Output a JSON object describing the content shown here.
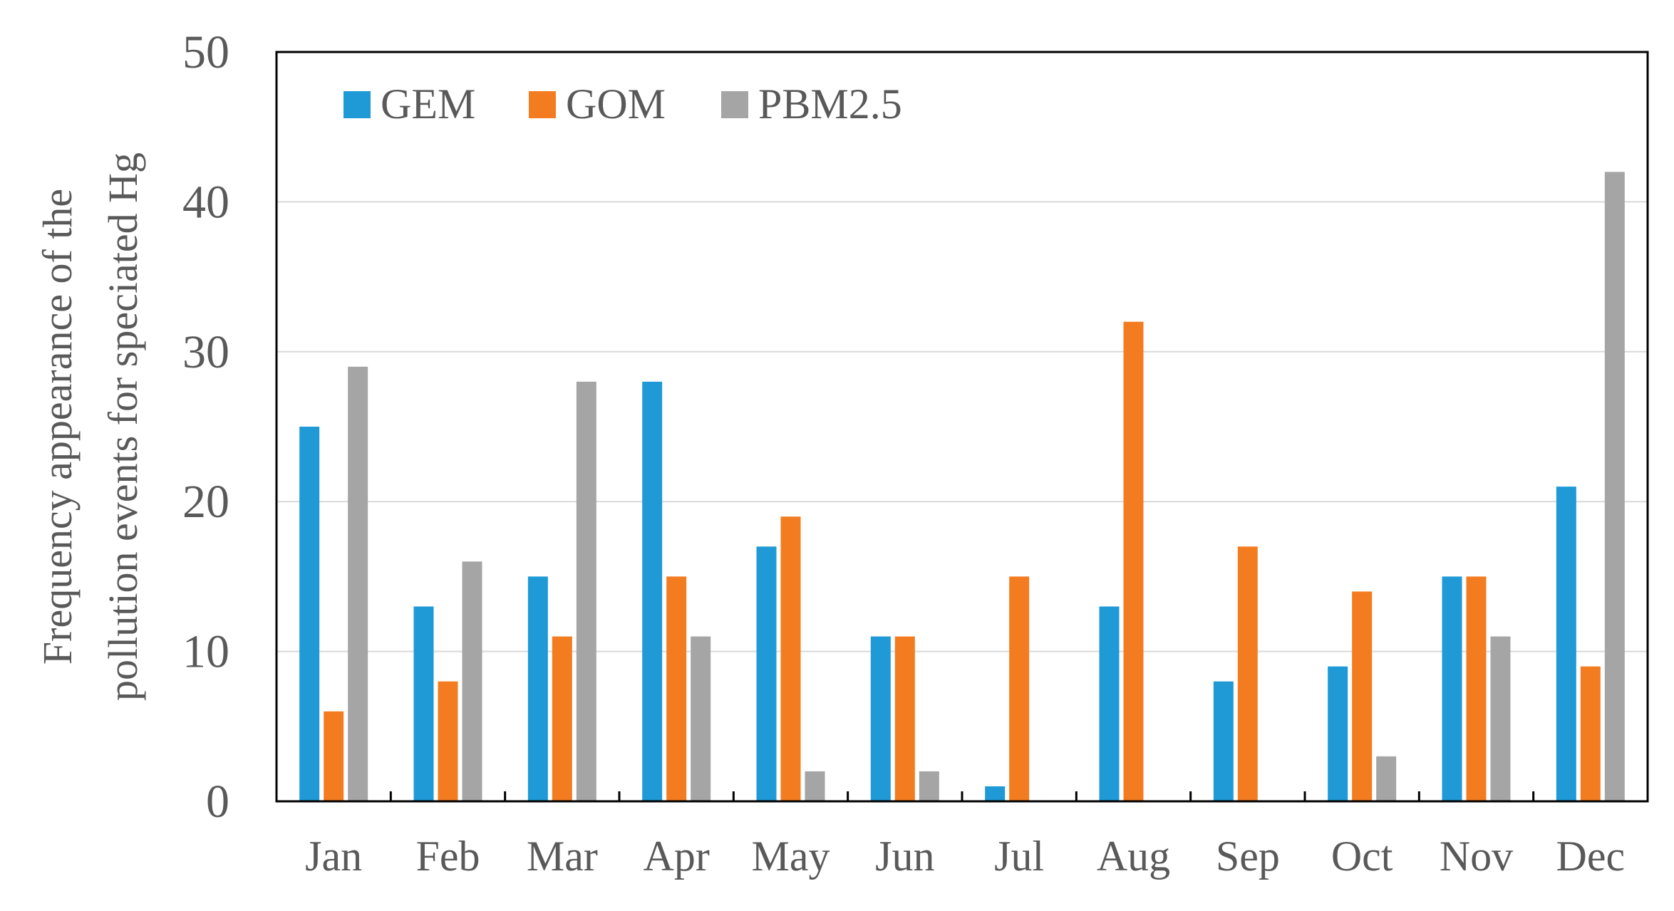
{
  "chart_data": {
    "type": "bar",
    "ylabel_lines": [
      "Frequency appearance of the",
      "pollution events for speciated Hg"
    ],
    "xlabel": "",
    "title": "",
    "categories": [
      "Jan",
      "Feb",
      "Mar",
      "Apr",
      "May",
      "Jun",
      "Jul",
      "Aug",
      "Sep",
      "Oct",
      "Nov",
      "Dec"
    ],
    "series": [
      {
        "name": "GEM",
        "color": "#1F9AD6",
        "values": [
          25,
          13,
          15,
          28,
          17,
          11,
          1,
          13,
          8,
          9,
          15,
          21
        ]
      },
      {
        "name": "GOM",
        "color": "#F47C20",
        "values": [
          6,
          8,
          11,
          15,
          19,
          11,
          15,
          32,
          17,
          14,
          15,
          9
        ]
      },
      {
        "name": "PBM2.5",
        "color": "#A5A5A5",
        "values": [
          29,
          16,
          28,
          11,
          2,
          2,
          0,
          0,
          0,
          3,
          11,
          42
        ]
      }
    ],
    "ylim": [
      0,
      50
    ],
    "yticks": [
      0,
      10,
      20,
      30,
      40,
      50
    ],
    "grid": true,
    "legend_position": "top-left"
  }
}
